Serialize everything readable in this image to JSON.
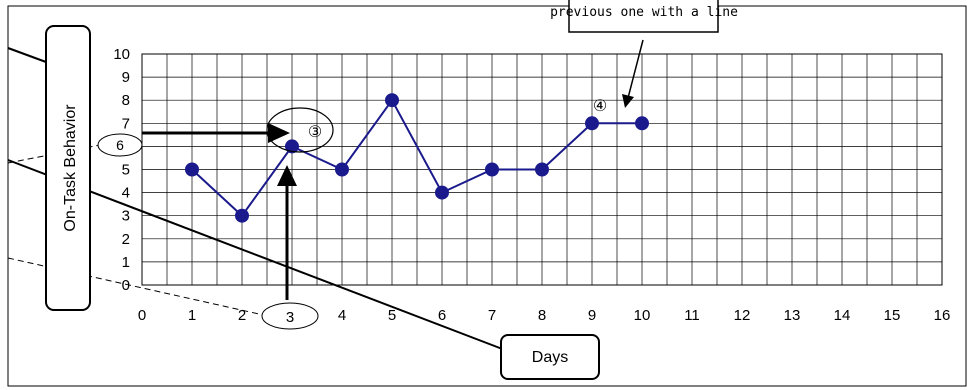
{
  "chart_data": {
    "type": "line",
    "x": [
      1,
      2,
      3,
      4,
      5,
      6,
      7,
      8,
      9,
      10
    ],
    "values": [
      5,
      3,
      6,
      5,
      8,
      4,
      5,
      5,
      7,
      7
    ],
    "x_ticks": [
      "0",
      "1",
      "2",
      "3",
      "4",
      "5",
      "6",
      "7",
      "8",
      "9",
      "10",
      "11",
      "12",
      "13",
      "14",
      "15",
      "16"
    ],
    "y_ticks": [
      "0",
      "1",
      "2",
      "3",
      "4",
      "5",
      "6",
      "7",
      "8",
      "9",
      "10"
    ],
    "xlim": [
      0,
      16
    ],
    "ylim": [
      0,
      10
    ],
    "grid": true,
    "ylabel": "On-Task Behavior",
    "xlabel": "Days",
    "series_color": "#1a1a8c",
    "annotations": {
      "callout_text": "previous one with a line",
      "marker_3": "③",
      "marker_4": "④",
      "circled_y": "6",
      "circled_x": "3"
    }
  }
}
